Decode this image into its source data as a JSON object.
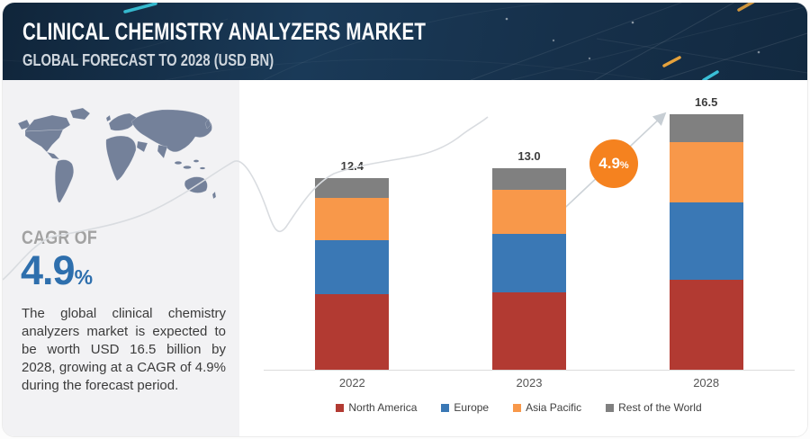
{
  "header": {
    "title": "CLINICAL CHEMISTRY ANALYZERS MARKET",
    "subtitle": "GLOBAL FORECAST TO 2028 (USD BN)",
    "bg_color": "#16304a",
    "accent_dashes": [
      "#39c9dd",
      "#f2a93b",
      "#3fd0e8"
    ]
  },
  "sidebar": {
    "cagr_label": "CAGR OF",
    "cagr_value": "4.9",
    "cagr_suffix": "%",
    "cagr_color": "#2e6fad",
    "description": "The global clinical chemistry analyzers market is expected to be worth USD 16.5 billion by 2028, growing at a CAGR of 4.9% during the forecast period.",
    "map_color": "#74819a",
    "panel_color": "#f2f2f4"
  },
  "badge": {
    "value": "4.9",
    "suffix": "%",
    "color": "#f5821f"
  },
  "chart_data": {
    "type": "bar",
    "stacked": true,
    "title": "Clinical Chemistry Analyzers Market, Global Forecast (USD BN)",
    "categories": [
      "2022",
      "2023",
      "2028"
    ],
    "series": [
      {
        "name": "North America",
        "color": "#b23a32",
        "values": [
          4.9,
          5.0,
          5.8
        ]
      },
      {
        "name": "Europe",
        "color": "#3a78b5",
        "values": [
          3.5,
          3.8,
          5.0
        ]
      },
      {
        "name": "Asia Pacific",
        "color": "#f8984a",
        "values": [
          2.7,
          2.8,
          3.9
        ]
      },
      {
        "name": "Rest of the World",
        "color": "#808080",
        "values": [
          1.3,
          1.4,
          1.8
        ]
      }
    ],
    "totals": [
      12.4,
      13.0,
      16.5
    ],
    "total_labels": [
      "12.4",
      "13.0",
      "16.5"
    ],
    "unit": "USD BN",
    "xlabel": "",
    "ylabel": "",
    "ylim": [
      0,
      18.5
    ],
    "grid": false,
    "legend_position": "bottom",
    "annotations": [
      {
        "text": "4.9%",
        "meaning": "CAGR 2023-2028"
      }
    ]
  }
}
